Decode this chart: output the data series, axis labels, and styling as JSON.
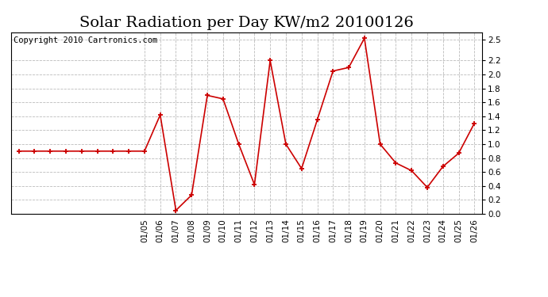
{
  "title": "Solar Radiation per Day KW/m2 20100126",
  "copyright": "Copyright 2010 Cartronics.com",
  "y_values": [
    0.9,
    0.9,
    0.9,
    0.9,
    0.9,
    0.9,
    0.9,
    0.9,
    0.9,
    1.42,
    0.05,
    0.27,
    1.7,
    1.65,
    1.0,
    0.42,
    2.2,
    1.0,
    0.65,
    1.35,
    2.05,
    2.1,
    2.52,
    1.0,
    0.73,
    0.62,
    0.38,
    0.68,
    0.87,
    1.3
  ],
  "n_pre": 8,
  "tick_labels": [
    "01/05",
    "01/06",
    "01/07",
    "01/08",
    "01/09",
    "01/10",
    "01/11",
    "01/12",
    "01/13",
    "01/14",
    "01/15",
    "01/16",
    "01/17",
    "01/18",
    "01/19",
    "01/20",
    "01/21",
    "01/22",
    "01/23",
    "01/24",
    "01/25",
    "01/26"
  ],
  "line_color": "#cc0000",
  "marker": "+",
  "marker_size": 5,
  "marker_edge_width": 1.3,
  "line_width": 1.2,
  "bg_color": "#ffffff",
  "plot_bg_color": "#ffffff",
  "grid_color": "#bbbbbb",
  "grid_style": "--",
  "grid_linewidth": 0.6,
  "ylim": [
    0.0,
    2.6
  ],
  "yticks": [
    0.0,
    0.2,
    0.4,
    0.6,
    0.8,
    1.0,
    1.2,
    1.4,
    1.6,
    1.8,
    2.0,
    2.2,
    2.5
  ],
  "title_fontsize": 14,
  "copyright_fontsize": 7.5,
  "tick_fontsize": 7.5,
  "fig_width": 6.9,
  "fig_height": 3.75,
  "dpi": 100
}
